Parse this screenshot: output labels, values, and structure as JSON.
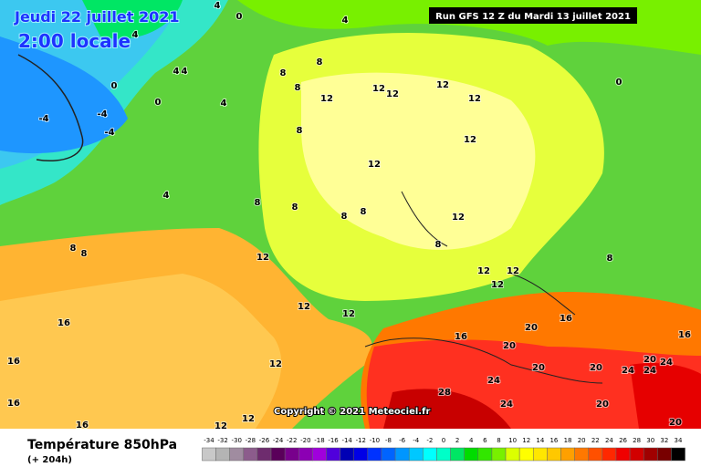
{
  "header": {
    "date": "Jeudi 22 juillet 2021",
    "time": "2:00 locale",
    "run": "Run GFS 12 Z du Mardi 13 juillet 2021"
  },
  "map": {
    "copyright": "Copyright © 2021 Meteociel.fr",
    "labels": [
      "4",
      "0",
      "4",
      "4",
      "4",
      "4",
      "0",
      "-4",
      "-4",
      "-4",
      "0",
      "4",
      "8",
      "8",
      "8",
      "12",
      "12",
      "12",
      "12",
      "12",
      "8",
      "12",
      "12",
      "4",
      "8",
      "8",
      "8",
      "8",
      "12",
      "8",
      "12",
      "12",
      "12",
      "12",
      "12",
      "12",
      "16",
      "8",
      "8",
      "16",
      "16",
      "16",
      "16",
      "16",
      "20",
      "20",
      "20",
      "20",
      "24",
      "24",
      "20",
      "24",
      "28",
      "24",
      "24",
      "20",
      "20",
      "16",
      "12",
      "12",
      "12",
      "0",
      "8"
    ]
  },
  "footer": {
    "title": "Température 850hPa",
    "lead": "(+ 204h)"
  },
  "legend": {
    "labels": [
      -34,
      -32,
      -30,
      -28,
      -26,
      -24,
      -22,
      -20,
      -18,
      -16,
      -14,
      -12,
      -10,
      -8,
      -6,
      -4,
      -2,
      0,
      2,
      4,
      6,
      8,
      10,
      12,
      14,
      16,
      18,
      20,
      22,
      24,
      26,
      28,
      30,
      32,
      34
    ],
    "colors": [
      "#c8c8c8",
      "#b4b4b4",
      "#a08ca0",
      "#8c5c8c",
      "#6e2c6e",
      "#5a005a",
      "#78008c",
      "#8c00b4",
      "#a000dc",
      "#5000dc",
      "#0000b4",
      "#0000e6",
      "#0032ff",
      "#0064ff",
      "#0096ff",
      "#00c8ff",
      "#00ffff",
      "#00ffc8",
      "#00e664",
      "#00dc00",
      "#32e600",
      "#78f000",
      "#dcff00",
      "#ffff00",
      "#ffe600",
      "#ffc800",
      "#ffa000",
      "#ff7800",
      "#ff5000",
      "#ff2800",
      "#f00000",
      "#d20000",
      "#a00000",
      "#780000",
      "#000000"
    ]
  }
}
